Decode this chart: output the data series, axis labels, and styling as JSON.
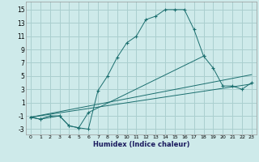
{
  "xlabel": "Humidex (Indice chaleur)",
  "background_color": "#ceeaea",
  "grid_color": "#aacfcf",
  "line_color": "#1a6e6e",
  "xlim": [
    -0.5,
    23.5
  ],
  "ylim": [
    -3.8,
    16.2
  ],
  "yticks": [
    -3,
    -1,
    1,
    3,
    5,
    7,
    9,
    11,
    13,
    15
  ],
  "xticks": [
    0,
    1,
    2,
    3,
    4,
    5,
    6,
    7,
    8,
    9,
    10,
    11,
    12,
    13,
    14,
    15,
    16,
    17,
    18,
    19,
    20,
    21,
    22,
    23
  ],
  "lines": [
    {
      "x": [
        0,
        1,
        2,
        3,
        4,
        5,
        6,
        7,
        8,
        9,
        10,
        11,
        12,
        13,
        14,
        15,
        16,
        17,
        18
      ],
      "y": [
        -1.2,
        -1.5,
        -1.0,
        -1.0,
        -2.5,
        -2.8,
        -3.0,
        2.8,
        5.0,
        7.8,
        10.0,
        11.0,
        13.5,
        14.0,
        15.0,
        15.0,
        15.0,
        12.0,
        8.0
      ],
      "marker": "+"
    },
    {
      "x": [
        0,
        1,
        3,
        4,
        5,
        6,
        18,
        19,
        20,
        21,
        22,
        23
      ],
      "y": [
        -1.2,
        -1.5,
        -1.0,
        -2.5,
        -2.8,
        -0.5,
        8.0,
        6.2,
        3.5,
        3.5,
        3.0,
        4.0
      ],
      "marker": "+"
    },
    {
      "x": [
        0,
        23
      ],
      "y": [
        -1.2,
        5.2
      ],
      "marker": null
    },
    {
      "x": [
        0,
        23
      ],
      "y": [
        -1.2,
        3.8
      ],
      "marker": null
    }
  ]
}
